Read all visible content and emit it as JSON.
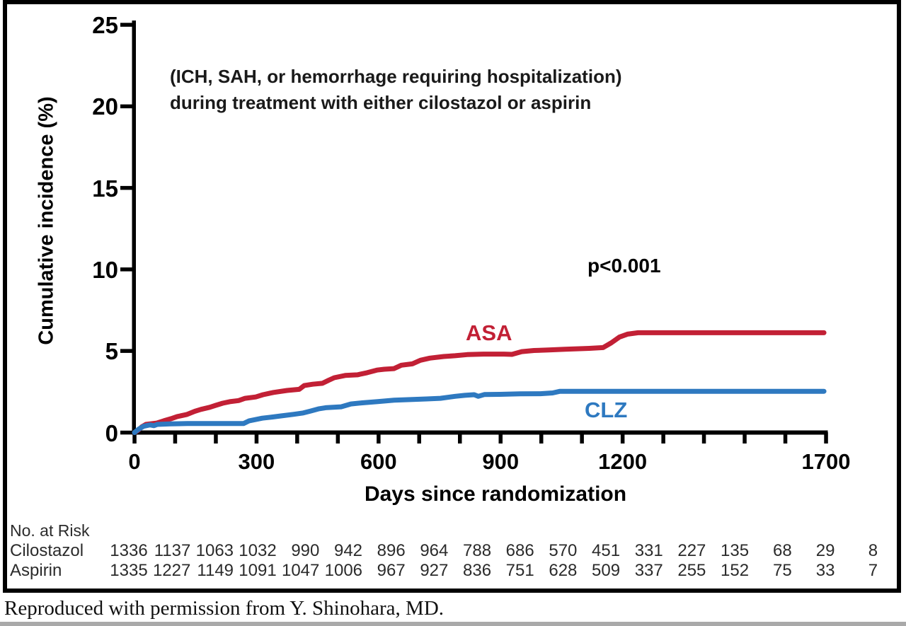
{
  "chart_data": {
    "type": "line",
    "annotation": [
      "(ICH, SAH, or hemorrhage requiring hospitalization)",
      "during treatment with either cilostazol or aspirin"
    ],
    "ylabel": "Cumulative incidence (%)",
    "xlabel": "Days since randomization",
    "p_value": "p<0.001",
    "xlim": [
      0,
      1700
    ],
    "ylim": [
      0,
      25
    ],
    "x_tick_interval": 100,
    "x_labeled_ticks": [
      0,
      300,
      600,
      900,
      1200,
      1700
    ],
    "y_ticks": [
      0,
      5,
      10,
      15,
      20,
      25
    ],
    "grid": false,
    "axis_color": "#000000",
    "series": [
      {
        "name": "ASA",
        "color": "#c22035",
        "points": [
          [
            0,
            0
          ],
          [
            8,
            0.12
          ],
          [
            18,
            0.35
          ],
          [
            28,
            0.5
          ],
          [
            55,
            0.58
          ],
          [
            72,
            0.72
          ],
          [
            90,
            0.85
          ],
          [
            105,
            0.98
          ],
          [
            128,
            1.1
          ],
          [
            148,
            1.3
          ],
          [
            163,
            1.42
          ],
          [
            185,
            1.55
          ],
          [
            200,
            1.67
          ],
          [
            217,
            1.8
          ],
          [
            234,
            1.89
          ],
          [
            256,
            1.96
          ],
          [
            272,
            2.1
          ],
          [
            298,
            2.18
          ],
          [
            316,
            2.32
          ],
          [
            342,
            2.46
          ],
          [
            375,
            2.58
          ],
          [
            405,
            2.65
          ],
          [
            417,
            2.88
          ],
          [
            438,
            2.96
          ],
          [
            462,
            3.02
          ],
          [
            477,
            3.2
          ],
          [
            491,
            3.36
          ],
          [
            518,
            3.5
          ],
          [
            548,
            3.54
          ],
          [
            572,
            3.67
          ],
          [
            596,
            3.83
          ],
          [
            614,
            3.88
          ],
          [
            638,
            3.92
          ],
          [
            656,
            4.13
          ],
          [
            683,
            4.21
          ],
          [
            703,
            4.43
          ],
          [
            726,
            4.56
          ],
          [
            760,
            4.66
          ],
          [
            788,
            4.71
          ],
          [
            818,
            4.78
          ],
          [
            858,
            4.81
          ],
          [
            908,
            4.81
          ],
          [
            928,
            4.79
          ],
          [
            952,
            4.96
          ],
          [
            982,
            5.03
          ],
          [
            1018,
            5.06
          ],
          [
            1058,
            5.11
          ],
          [
            1118,
            5.16
          ],
          [
            1152,
            5.21
          ],
          [
            1172,
            5.5
          ],
          [
            1192,
            5.85
          ],
          [
            1212,
            6.03
          ],
          [
            1238,
            6.12
          ],
          [
            1695,
            6.12
          ]
        ]
      },
      {
        "name": "CLZ",
        "color": "#2e79c0",
        "points": [
          [
            0,
            0
          ],
          [
            10,
            0.2
          ],
          [
            22,
            0.38
          ],
          [
            38,
            0.47
          ],
          [
            48,
            0.42
          ],
          [
            56,
            0.5
          ],
          [
            88,
            0.53
          ],
          [
            130,
            0.55
          ],
          [
            268,
            0.55
          ],
          [
            282,
            0.72
          ],
          [
            298,
            0.8
          ],
          [
            314,
            0.88
          ],
          [
            338,
            0.95
          ],
          [
            360,
            1.02
          ],
          [
            392,
            1.12
          ],
          [
            415,
            1.2
          ],
          [
            433,
            1.32
          ],
          [
            452,
            1.45
          ],
          [
            470,
            1.52
          ],
          [
            508,
            1.58
          ],
          [
            532,
            1.75
          ],
          [
            560,
            1.82
          ],
          [
            598,
            1.9
          ],
          [
            638,
            1.98
          ],
          [
            678,
            2.02
          ],
          [
            718,
            2.06
          ],
          [
            752,
            2.1
          ],
          [
            788,
            2.22
          ],
          [
            812,
            2.28
          ],
          [
            835,
            2.32
          ],
          [
            845,
            2.22
          ],
          [
            860,
            2.33
          ],
          [
            898,
            2.34
          ],
          [
            948,
            2.37
          ],
          [
            998,
            2.38
          ],
          [
            1028,
            2.43
          ],
          [
            1046,
            2.53
          ],
          [
            1695,
            2.53
          ]
        ]
      }
    ]
  },
  "risk_table": {
    "title": "No. at Risk",
    "rows": [
      {
        "label": "Cilostazol",
        "values": [
          "1336",
          "1137",
          "1063",
          "1032",
          "990",
          "942",
          "896",
          "964",
          "788",
          "686",
          "570",
          "451",
          "331",
          "227",
          "135",
          "68",
          "29",
          "8"
        ]
      },
      {
        "label": "Aspirin",
        "values": [
          "1335",
          "1227",
          "1149",
          "1091",
          "1047",
          "1006",
          "967",
          "927",
          "836",
          "751",
          "628",
          "509",
          "337",
          "255",
          "152",
          "75",
          "33",
          "7"
        ]
      }
    ]
  },
  "credit": "Reproduced with permission from Y. Shinohara, MD."
}
